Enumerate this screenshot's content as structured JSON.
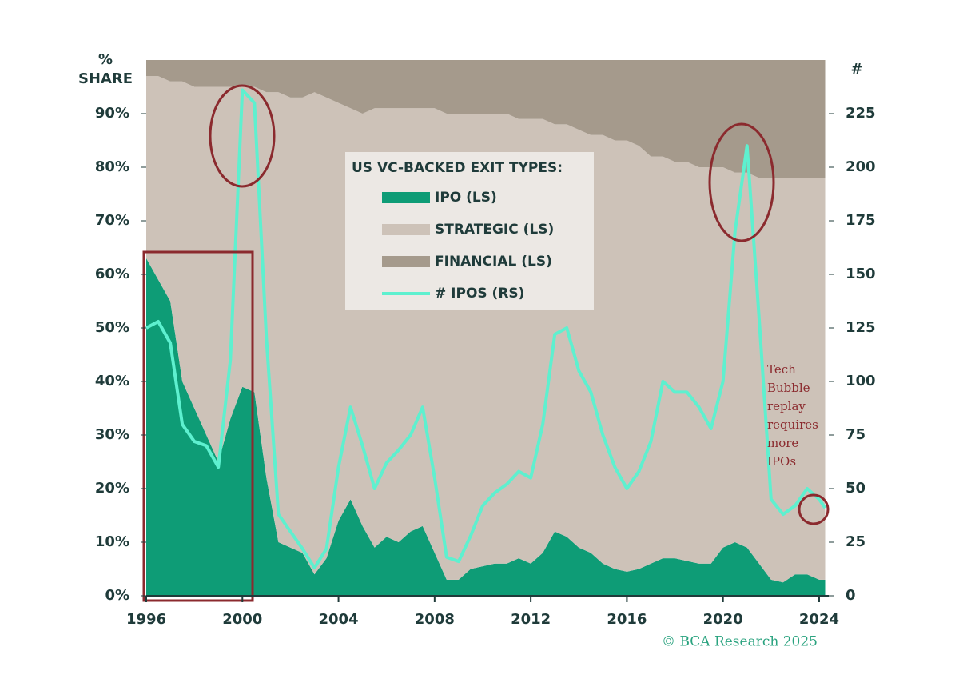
{
  "chart_data": {
    "type": "area",
    "ylabel": [
      "%",
      "SHARE"
    ],
    "y2label": "#",
    "legend_title": "US VC-BACKED EXIT TYPES:",
    "annotation": [
      "Tech",
      "Bubble",
      "replay",
      "requires",
      "more",
      "IPOs"
    ],
    "source": "© BCA Research 2025",
    "xlim": [
      1996,
      2024.4
    ],
    "xticks": [
      1996,
      2000,
      2004,
      2008,
      2012,
      2016,
      2020,
      2024
    ],
    "ylim": [
      0,
      100
    ],
    "yticks": [
      {
        "value": 0,
        "label": "0%"
      },
      {
        "value": 10,
        "label": "10%"
      },
      {
        "value": 20,
        "label": "20%"
      },
      {
        "value": 30,
        "label": "30%"
      },
      {
        "value": 40,
        "label": "40%"
      },
      {
        "value": 50,
        "label": "50%"
      },
      {
        "value": 60,
        "label": "60%"
      },
      {
        "value": 70,
        "label": "70%"
      },
      {
        "value": 80,
        "label": "80%"
      },
      {
        "value": 90,
        "label": "90%"
      }
    ],
    "y2lim": [
      0,
      250
    ],
    "y2ticks": [
      0,
      25,
      50,
      75,
      100,
      125,
      150,
      175,
      200,
      225
    ],
    "x": [
      1996,
      1996.5,
      1997,
      1997.5,
      1998,
      1998.5,
      1999,
      1999.5,
      2000,
      2000.5,
      2001,
      2001.5,
      2002,
      2002.5,
      2003,
      2003.5,
      2004,
      2004.5,
      2005,
      2005.5,
      2006,
      2006.5,
      2007,
      2007.5,
      2008,
      2008.5,
      2009,
      2009.5,
      2010,
      2010.5,
      2011,
      2011.5,
      2012,
      2012.5,
      2013,
      2013.5,
      2014,
      2014.5,
      2015,
      2015.5,
      2016,
      2016.5,
      2017,
      2017.5,
      2018,
      2018.5,
      2019,
      2019.5,
      2020,
      2020.5,
      2021,
      2021.5,
      2022,
      2022.5,
      2023,
      2023.5,
      2024,
      2024.25
    ],
    "series": [
      {
        "name": "IPO (LS)",
        "color": "#0e9c76",
        "type": "area",
        "values": [
          63,
          59,
          55,
          40,
          35,
          30,
          25,
          33,
          39,
          38,
          22,
          10,
          9,
          8,
          4,
          7,
          14,
          18,
          13,
          9,
          11,
          10,
          12,
          13,
          8,
          3,
          3,
          5,
          5.5,
          6,
          6,
          7,
          6,
          8,
          12,
          11,
          9,
          8,
          6,
          5,
          4.5,
          5,
          6,
          7,
          7,
          6.5,
          6,
          6,
          9,
          10,
          9,
          6,
          3,
          2.5,
          4,
          4,
          3,
          3
        ]
      },
      {
        "name": "STRATEGIC (LS)",
        "color": "#cdc2b8",
        "type": "area",
        "values": [
          34,
          38,
          41,
          56,
          60,
          65,
          70,
          62,
          56,
          57,
          72,
          84,
          84,
          85,
          90,
          86,
          78,
          73,
          77,
          82,
          80,
          81,
          79,
          78,
          83,
          87,
          87,
          85,
          84.5,
          84,
          84,
          82,
          83,
          81,
          76,
          77,
          78,
          78,
          80,
          80,
          80.5,
          79,
          76,
          75,
          74,
          74.5,
          74,
          74,
          71,
          69,
          70,
          72,
          75,
          75.5,
          74,
          74,
          75,
          75
        ]
      },
      {
        "name": "FINANCIAL (LS)",
        "color": "#a59a8c",
        "type": "area",
        "values": [
          3,
          3,
          4,
          4,
          5,
          5,
          5,
          5,
          5,
          5,
          6,
          6,
          7,
          7,
          6,
          7,
          8,
          9,
          10,
          9,
          9,
          9,
          9,
          9,
          9,
          10,
          10,
          10,
          10,
          10,
          10,
          11,
          11,
          11,
          12,
          12,
          13,
          14,
          14,
          15,
          15,
          16,
          18,
          18,
          19,
          19,
          20,
          20,
          20,
          21,
          21,
          22,
          22,
          22,
          22,
          22,
          22,
          22
        ]
      },
      {
        "name": "# IPOS (RS)",
        "color": "#5ef0cf",
        "type": "line",
        "axis": "y2",
        "values": [
          125,
          128,
          118,
          80,
          72,
          70,
          60,
          110,
          236,
          230,
          120,
          38,
          30,
          22,
          13,
          22,
          60,
          88,
          70,
          50,
          62,
          68,
          75,
          88,
          55,
          18,
          16,
          28,
          42,
          48,
          52,
          58,
          55,
          80,
          122,
          125,
          105,
          95,
          75,
          60,
          50,
          58,
          72,
          100,
          95,
          95,
          88,
          78,
          100,
          170,
          210,
          130,
          45,
          38,
          42,
          50,
          45,
          41
        ]
      }
    ]
  }
}
